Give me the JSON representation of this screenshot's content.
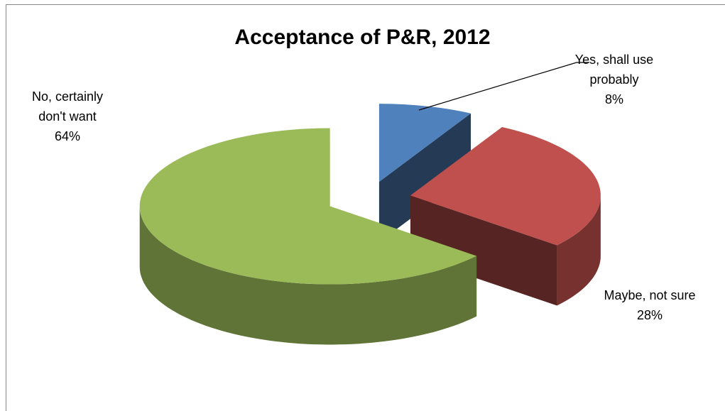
{
  "chart_data": {
    "type": "pie",
    "title": "Acceptance of  P&R, 2012",
    "categories": [
      "Yes, shall use probably",
      "Maybe, not sure",
      "No, certainly don't want"
    ],
    "values": [
      8,
      28,
      64
    ],
    "value_labels": [
      "8%",
      "28%",
      "64%"
    ],
    "colors": [
      "#4f81bd",
      "#c0504d",
      "#9bbb59"
    ]
  }
}
